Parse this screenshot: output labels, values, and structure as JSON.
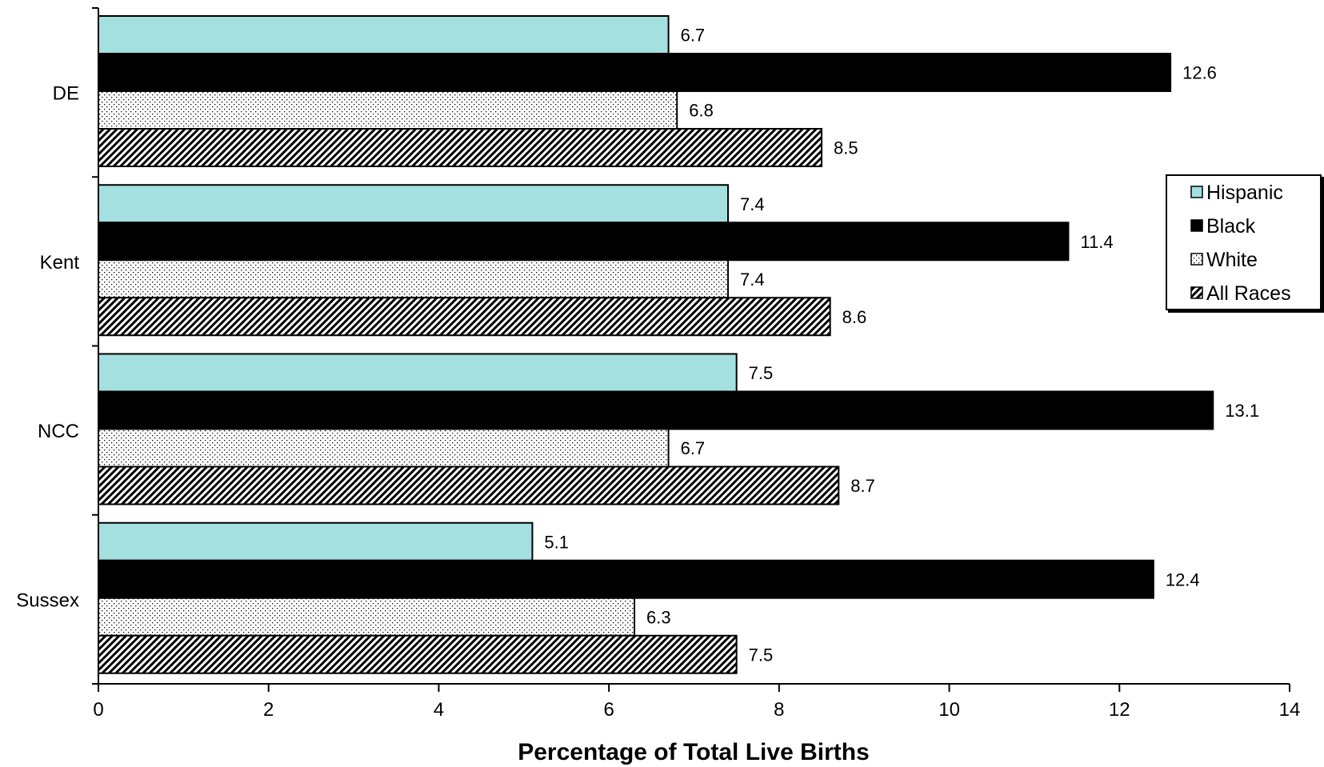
{
  "chart_data": {
    "type": "bar",
    "orientation": "horizontal",
    "categories": [
      "DE",
      "Kent",
      "NCC",
      "Sussex"
    ],
    "series": [
      {
        "name": "Hispanic",
        "values": [
          6.7,
          7.4,
          7.5,
          5.1
        ],
        "fill": "solid",
        "color": "#a4e0df"
      },
      {
        "name": "Black",
        "values": [
          12.6,
          11.4,
          13.1,
          12.4
        ],
        "fill": "solid",
        "color": "#000000"
      },
      {
        "name": "White",
        "values": [
          6.8,
          7.4,
          6.7,
          6.3
        ],
        "fill": "dots",
        "color": "#ffffff"
      },
      {
        "name": "All Races",
        "values": [
          8.5,
          8.6,
          8.7,
          7.5
        ],
        "fill": "diagonal-hatch",
        "color": "#000000"
      }
    ],
    "data_labels": [
      [
        "6.7",
        "12.6",
        "6.8",
        "8.5"
      ],
      [
        "7.4",
        "11.4",
        "7.4",
        "8.6"
      ],
      [
        "7.5",
        "13.1",
        "6.7",
        "8.7"
      ],
      [
        "5.1",
        "12.4",
        "6.3",
        "7.5"
      ]
    ],
    "xlabel": "Percentage of Total Live Births",
    "ylabel": "",
    "title": "",
    "xlim": [
      0,
      14
    ],
    "xticks": [
      "0",
      "2",
      "4",
      "6",
      "8",
      "10",
      "12",
      "14"
    ],
    "grid": false,
    "legend": {
      "placement": "right",
      "entries": [
        "Hispanic",
        "Black",
        "White",
        "All Races"
      ]
    }
  }
}
